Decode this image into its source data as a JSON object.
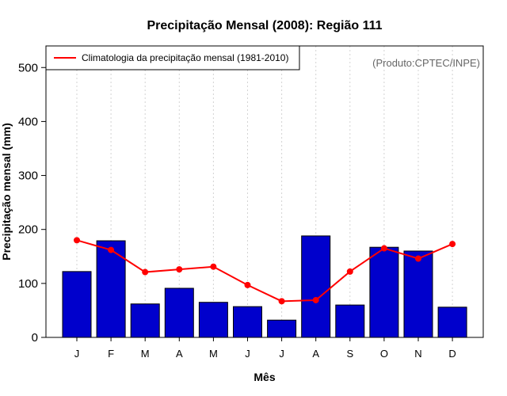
{
  "chart_data": {
    "type": "bar",
    "title": "Precipitação Mensal (2008): Região 111",
    "xlabel": "Mês",
    "ylabel": "Precipitação mensal (mm)",
    "ylim": [
      0,
      540
    ],
    "yticks": [
      0,
      100,
      200,
      300,
      400,
      500
    ],
    "categories": [
      "J",
      "F",
      "M",
      "A",
      "M",
      "J",
      "J",
      "A",
      "S",
      "O",
      "N",
      "D"
    ],
    "series": [
      {
        "name": "Precipitação mensal 2008",
        "type": "bar",
        "color": "#0000CC",
        "values": [
          122,
          179,
          62,
          91,
          65,
          57,
          32,
          188,
          60,
          167,
          160,
          56
        ]
      },
      {
        "name": "Climatologia da precipitação mensal (1981-2010)",
        "type": "line",
        "color": "#FF0000",
        "values": [
          180,
          162,
          121,
          126,
          131,
          97,
          67,
          69,
          122,
          165,
          146,
          173
        ]
      }
    ],
    "legend": {
      "position": "top-left",
      "entries": [
        "Climatologia da precipitação mensal (1981-2010)"
      ]
    },
    "credit": "(Produto:CPTEC/INPE)",
    "grid": "vertical dotted"
  }
}
